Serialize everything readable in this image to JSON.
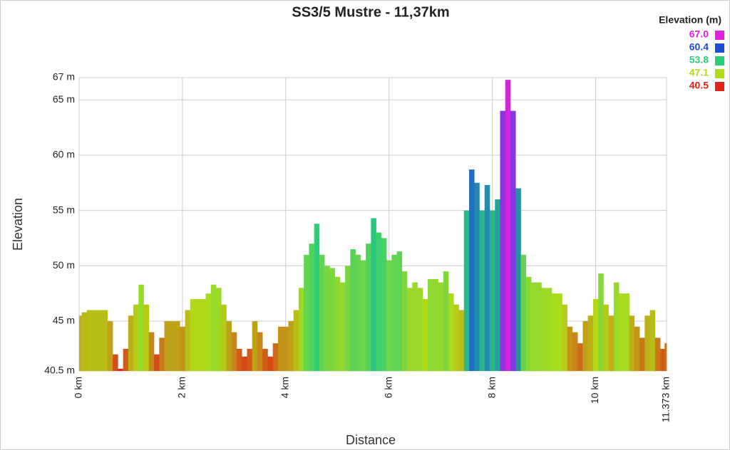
{
  "chart_data": {
    "type": "elevation",
    "title": "SS3/5 Mustre - 11,37km",
    "x_label": "Distance",
    "y_label": "Elevation",
    "legend_title": "Elevation (m)",
    "colorscale": [
      {
        "value": 67.0,
        "label": "67.0",
        "color": "#e020e0"
      },
      {
        "value": 60.4,
        "label": "60.4",
        "color": "#1c4fd8"
      },
      {
        "value": 53.8,
        "label": "53.8",
        "color": "#2ccf78"
      },
      {
        "value": 47.1,
        "label": "47.1",
        "color": "#b0dc18"
      },
      {
        "value": 40.5,
        "label": "40.5",
        "color": "#e02418"
      }
    ],
    "xlim": [
      0,
      11.373
    ],
    "ylim": [
      40.5,
      67
    ],
    "xticks": [
      {
        "value": 0,
        "label": "0 km"
      },
      {
        "value": 2,
        "label": "2 km"
      },
      {
        "value": 4,
        "label": "4 km"
      },
      {
        "value": 6,
        "label": "6 km"
      },
      {
        "value": 8,
        "label": "8 km"
      },
      {
        "value": 10,
        "label": "10 km"
      },
      {
        "value": 11.373,
        "label": "11.373 km"
      }
    ],
    "yticks": [
      {
        "value": 40.5,
        "label": "40.5 m"
      },
      {
        "value": 45,
        "label": "45 m"
      },
      {
        "value": 50,
        "label": "50 m"
      },
      {
        "value": 55,
        "label": "55 m"
      },
      {
        "value": 60,
        "label": "60 m"
      },
      {
        "value": 65,
        "label": "65 m"
      },
      {
        "value": 67,
        "label": "67 m"
      }
    ],
    "grid": true,
    "x": [
      0,
      0.1,
      0.2,
      0.3,
      0.4,
      0.5,
      0.6,
      0.7,
      0.8,
      0.9,
      1.0,
      1.1,
      1.2,
      1.3,
      1.4,
      1.5,
      1.6,
      1.7,
      1.8,
      1.9,
      2.0,
      2.1,
      2.2,
      2.3,
      2.4,
      2.5,
      2.6,
      2.7,
      2.8,
      2.9,
      3.0,
      3.1,
      3.2,
      3.3,
      3.4,
      3.5,
      3.6,
      3.7,
      3.8,
      3.9,
      4.0,
      4.1,
      4.2,
      4.3,
      4.4,
      4.5,
      4.6,
      4.7,
      4.8,
      4.9,
      5.0,
      5.1,
      5.2,
      5.3,
      5.4,
      5.5,
      5.6,
      5.7,
      5.8,
      5.9,
      6.0,
      6.1,
      6.2,
      6.3,
      6.4,
      6.5,
      6.6,
      6.7,
      6.8,
      6.9,
      7.0,
      7.1,
      7.2,
      7.3,
      7.4,
      7.5,
      7.6,
      7.7,
      7.8,
      7.9,
      8.0,
      8.1,
      8.2,
      8.3,
      8.4,
      8.5,
      8.6,
      8.7,
      8.8,
      8.9,
      9.0,
      9.1,
      9.2,
      9.3,
      9.4,
      9.5,
      9.6,
      9.7,
      9.8,
      9.9,
      10.0,
      10.1,
      10.2,
      10.3,
      10.4,
      10.5,
      10.6,
      10.7,
      10.8,
      10.9,
      11.0,
      11.1,
      11.2,
      11.3,
      11.373
    ],
    "values": [
      45.5,
      45.8,
      46.0,
      46.0,
      46.0,
      46.0,
      45.0,
      42.0,
      40.7,
      42.5,
      45.5,
      46.5,
      48.3,
      46.5,
      44.0,
      42.0,
      43.5,
      45.0,
      45.0,
      45.0,
      44.5,
      46.0,
      47.0,
      47.0,
      47.0,
      47.5,
      48.3,
      48.0,
      46.5,
      45.0,
      44.0,
      42.5,
      41.8,
      42.5,
      45.0,
      44.0,
      42.5,
      41.8,
      43.0,
      44.5,
      44.5,
      45.0,
      46.0,
      48.0,
      51.0,
      52.0,
      53.8,
      51.0,
      50.0,
      49.8,
      49.0,
      48.5,
      50.0,
      51.5,
      51.0,
      50.5,
      52.0,
      54.3,
      53.0,
      52.5,
      50.5,
      51.0,
      51.3,
      49.5,
      48.0,
      48.5,
      48.0,
      47.0,
      48.8,
      48.8,
      48.5,
      49.5,
      47.5,
      46.5,
      46.0,
      55.0,
      58.7,
      57.5,
      55.0,
      57.3,
      55.0,
      56.0,
      64.0,
      66.8,
      64.0,
      57.0,
      51.0,
      49.0,
      48.5,
      48.5,
      48.0,
      48.0,
      47.5,
      47.5,
      46.5,
      44.5,
      44.0,
      43.0,
      45.0,
      45.5,
      47.0,
      49.3,
      46.5,
      45.5,
      48.5,
      47.5,
      47.5,
      45.5,
      44.5,
      43.5,
      45.5,
      46.0,
      43.5,
      42.5,
      43.0
    ]
  }
}
